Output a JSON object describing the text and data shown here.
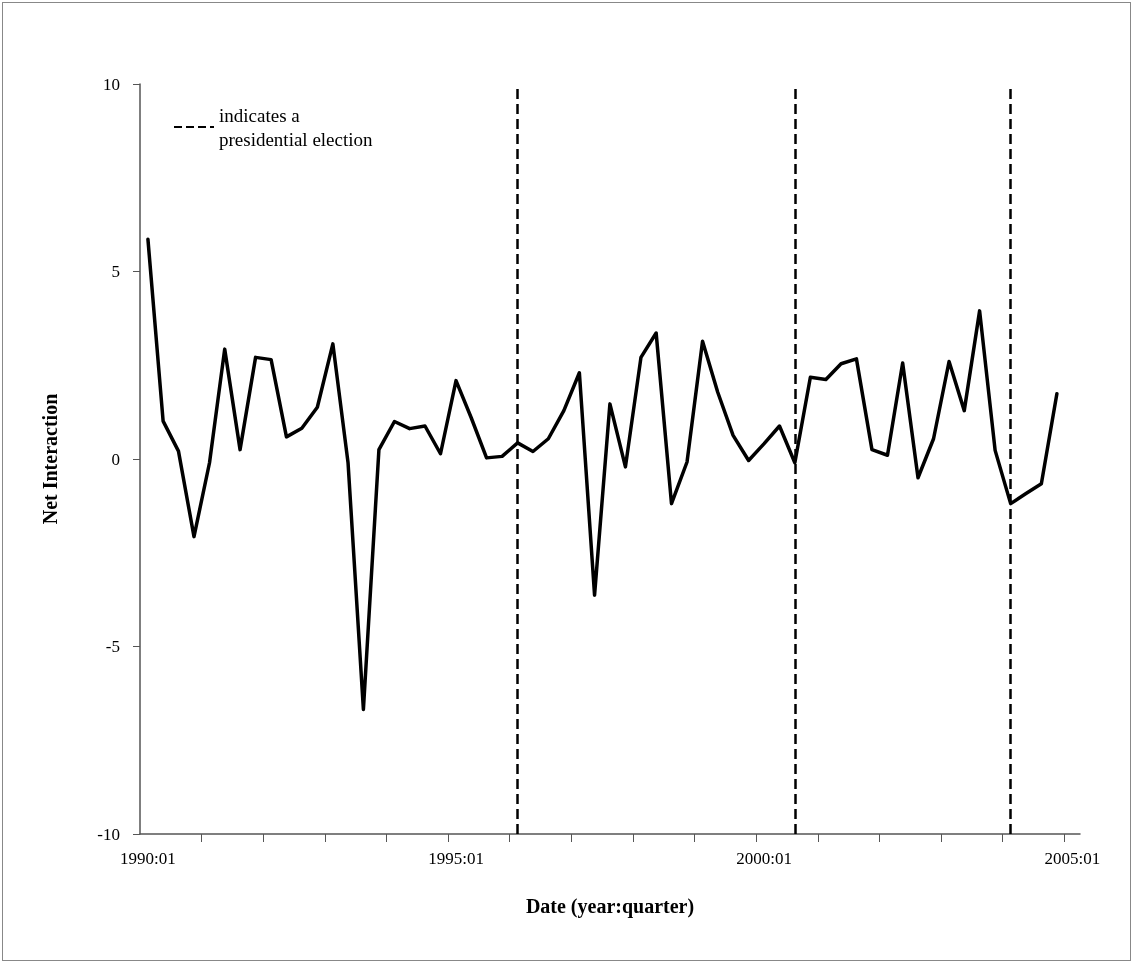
{
  "chart_data": {
    "type": "line",
    "xlabel": "Date (year:quarter)",
    "ylabel": "Net Interaction",
    "x": [
      "1990-01",
      "1990-04",
      "1990-07",
      "1990-10",
      "1991-01",
      "1991-04",
      "1991-07",
      "1991-10",
      "1992-01",
      "1992-04",
      "1992-07",
      "1992-10",
      "1993-01",
      "1993-04",
      "1993-07",
      "1993-10",
      "1994-01",
      "1994-04",
      "1994-07",
      "1994-10",
      "1995-01",
      "1995-04",
      "1995-07",
      "1995-10",
      "1996-01",
      "1996-04",
      "1996-07",
      "1996-10",
      "1997-01",
      "1997-04",
      "1997-07",
      "1997-10",
      "1998-01",
      "1998-04",
      "1998-07",
      "1998-10",
      "1999-01",
      "1999-04",
      "1999-07",
      "1999-10",
      "2000-01",
      "2000-04",
      "2000-07",
      "2000-10",
      "2001-01",
      "2001-04",
      "2001-07",
      "2001-10",
      "2002-01",
      "2002-04",
      "2002-07",
      "2002-10",
      "2003-01",
      "2003-04",
      "2003-07",
      "2003-10",
      "2004-01",
      "2004-04",
      "2004-07",
      "2004-10"
    ],
    "series": [
      {
        "color": "#000000",
        "values": [
          5.86,
          1.01,
          0.21,
          -2.07,
          -0.1,
          2.93,
          0.25,
          2.71,
          2.65,
          0.59,
          0.82,
          1.38,
          3.07,
          -0.1,
          -6.68,
          0.25,
          1.0,
          0.81,
          0.88,
          0.14,
          2.09,
          1.1,
          0.03,
          0.07,
          0.43,
          0.2,
          0.54,
          1.29,
          2.3,
          -3.63,
          1.47,
          -0.21,
          2.71,
          3.36,
          -1.19,
          -0.08,
          3.14,
          1.78,
          0.63,
          -0.04,
          0.41,
          0.88,
          -0.1,
          2.18,
          2.12,
          2.54,
          2.67,
          0.25,
          0.1,
          2.56,
          -0.5,
          0.54,
          2.6,
          1.29,
          3.95,
          0.23,
          -1.19,
          -0.92,
          -0.66,
          1.74
        ]
      }
    ],
    "xlim": [
      "1989-11-15",
      "2005-02-15"
    ],
    "xticks": [
      {
        "value": "1990-01",
        "label": "1990:01"
      },
      {
        "value": "1990-11-15",
        "label": null
      },
      {
        "value": "1991-11-15",
        "label": null
      },
      {
        "value": "1992-11-15",
        "label": null
      },
      {
        "value": "1993-11-15",
        "label": null
      },
      {
        "value": "1994-11-15",
        "label": null
      },
      {
        "value": "1995-01",
        "label": "1995:01"
      },
      {
        "value": "1995-11-15",
        "label": null
      },
      {
        "value": "1996-11-15",
        "label": null
      },
      {
        "value": "1997-11-15",
        "label": null
      },
      {
        "value": "1998-11-15",
        "label": null
      },
      {
        "value": "1999-11-15",
        "label": null
      },
      {
        "value": "2000-01",
        "label": "2000:01"
      },
      {
        "value": "2000-11-15",
        "label": null
      },
      {
        "value": "2001-11-15",
        "label": null
      },
      {
        "value": "2002-11-15",
        "label": null
      },
      {
        "value": "2003-11-15",
        "label": null
      },
      {
        "value": "2004-11-15",
        "label": null
      },
      {
        "value": "2005-01",
        "label": "2005:01"
      }
    ],
    "ylim": [
      -10,
      10
    ],
    "yticks": [
      -10,
      -5,
      0,
      5,
      10
    ],
    "ref_lines": [
      {
        "axis": "x",
        "value": "1996-01",
        "label": "indicates a presidential election",
        "color": "#000000",
        "line_style": "dashed"
      },
      {
        "axis": "x",
        "value": "2000-07",
        "color": "#000000",
        "line_style": "dashed"
      },
      {
        "axis": "x",
        "value": "2004-01",
        "color": "#000000",
        "line_style": "dashed"
      }
    ],
    "grid": false,
    "legend": "top left",
    "marker": "none",
    "line_style": "solid"
  }
}
